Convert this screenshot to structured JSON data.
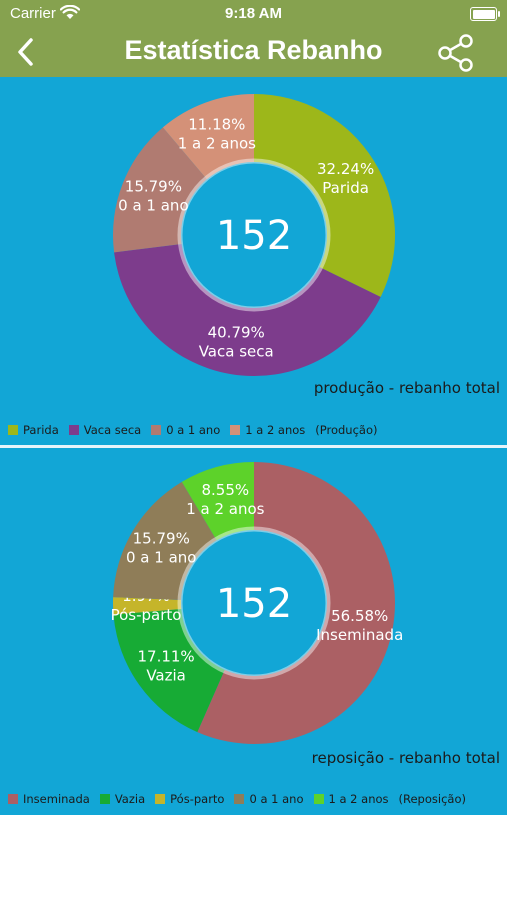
{
  "status_bar": {
    "carrier": "Carrier",
    "time": "9:18 AM"
  },
  "nav": {
    "title": "Estatística Rebanho",
    "back_icon": "chevron-left-icon",
    "share_icon": "share-icon"
  },
  "colors": {
    "header": "#86a24f",
    "panel": "#12a6d6"
  },
  "chart_data": [
    {
      "type": "pie",
      "center_label": "152",
      "caption": "produção - rebanho total",
      "legend_suffix": "(Produção)",
      "slices": [
        {
          "name": "Parida",
          "percent": 32.24,
          "pct_label": "32.24%",
          "color": "#9db71a"
        },
        {
          "name": "Vaca seca",
          "percent": 40.79,
          "pct_label": "40.79%",
          "color": "#7d3c8c"
        },
        {
          "name": "0 a 1 ano",
          "percent": 15.79,
          "pct_label": "15.79%",
          "color": "#b07b71"
        },
        {
          "name": "1 a 2 anos",
          "percent": 11.18,
          "pct_label": "11.18%",
          "color": "#d49178"
        }
      ]
    },
    {
      "type": "pie",
      "center_label": "152",
      "caption": "reposição - rebanho total",
      "legend_suffix": "(Reposição)",
      "slices": [
        {
          "name": "Inseminada",
          "percent": 56.58,
          "pct_label": "56.58%",
          "color": "#ab6064"
        },
        {
          "name": "Vazia",
          "percent": 17.11,
          "pct_label": "17.11%",
          "color": "#17ab35"
        },
        {
          "name": "Pós-parto",
          "percent": 1.97,
          "pct_label": "1.97%",
          "color": "#c5b52a"
        },
        {
          "name": "0 a 1 ano",
          "percent": 15.79,
          "pct_label": "15.79%",
          "color": "#8f7d58"
        },
        {
          "name": "1 a 2 anos",
          "percent": 8.55,
          "pct_label": "8.55%",
          "color": "#5dd22a"
        }
      ]
    }
  ]
}
